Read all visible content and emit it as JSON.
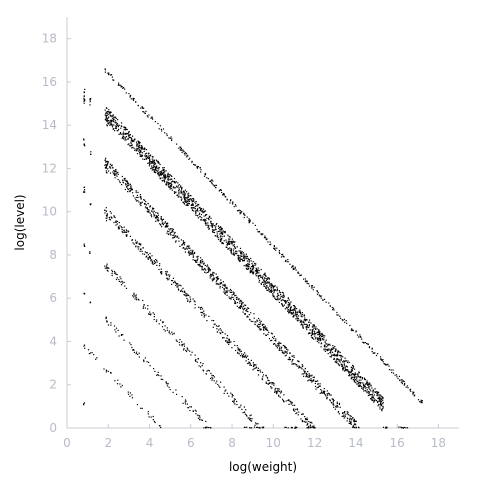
{
  "chart_data": {
    "type": "scatter",
    "xlabel": "log(weight)",
    "ylabel": "log(level)",
    "xlim": [
      0,
      19
    ],
    "ylim": [
      0,
      19
    ],
    "x_ticks": [
      "0",
      "2",
      "4",
      "6",
      "8",
      "10",
      "12",
      "14",
      "16",
      "18"
    ],
    "y_ticks": [
      "0",
      "2",
      "4",
      "6",
      "8",
      "10",
      "12",
      "14",
      "16",
      "18"
    ],
    "grid": false,
    "legend": "none",
    "marker_color": "#000000",
    "axis_color": "#c8ccd4",
    "bands": [
      {
        "x_start": 1.8,
        "y_start": 16.6,
        "slope": -1.0,
        "x_end": 17.2,
        "spread": 0.1,
        "density": 0.6
      },
      {
        "x_start": 1.8,
        "y_start": 14.6,
        "slope": -1.0,
        "x_end": 15.3,
        "spread": 0.35,
        "density": 3.0
      },
      {
        "x_start": 1.8,
        "y_start": 12.3,
        "slope": -1.0,
        "x_end": 14.0,
        "spread": 0.25,
        "density": 1.6
      },
      {
        "x_start": 1.8,
        "y_start": 10.1,
        "slope": -1.0,
        "x_end": 12.0,
        "spread": 0.2,
        "density": 1.0
      },
      {
        "x_start": 1.8,
        "y_start": 7.6,
        "slope": -1.0,
        "x_end": 9.3,
        "spread": 0.18,
        "density": 0.6
      },
      {
        "x_start": 1.8,
        "y_start": 5.1,
        "slope": -1.0,
        "x_end": 6.9,
        "spread": 0.15,
        "density": 0.4
      },
      {
        "x_start": 0.8,
        "y_start": 3.8,
        "slope": -1.0,
        "x_end": 4.6,
        "spread": 0.12,
        "density": 0.25
      }
    ],
    "columns": [
      {
        "x": 0.8,
        "y_ranges": [
          [
            15.0,
            15.8
          ],
          [
            13.0,
            13.5
          ],
          [
            10.8,
            11.2
          ],
          [
            8.4,
            8.7
          ],
          [
            6.1,
            6.3
          ],
          [
            3.7,
            3.9
          ],
          [
            1.1,
            1.2
          ]
        ]
      },
      {
        "x": 1.1,
        "y_ranges": [
          [
            14.9,
            15.3
          ],
          [
            12.6,
            12.8
          ],
          [
            10.3,
            10.5
          ],
          [
            8.1,
            8.2
          ],
          [
            5.8,
            5.9
          ]
        ]
      },
      {
        "x": 1.9,
        "y_ranges": [
          [
            13.9,
            14.7
          ],
          [
            11.8,
            12.2
          ],
          [
            9.6,
            10.0
          ],
          [
            7.3,
            7.6
          ],
          [
            4.9,
            5.1
          ],
          [
            2.6,
            2.7
          ]
        ]
      }
    ],
    "floor_x_ranges": [
      [
        6.5,
        7.0
      ],
      [
        8.5,
        9.5
      ],
      [
        10.5,
        11.2
      ],
      [
        11.5,
        12.0
      ],
      [
        13.8,
        14.2
      ],
      [
        15.2,
        15.6
      ],
      [
        16.0,
        16.5
      ]
    ]
  }
}
